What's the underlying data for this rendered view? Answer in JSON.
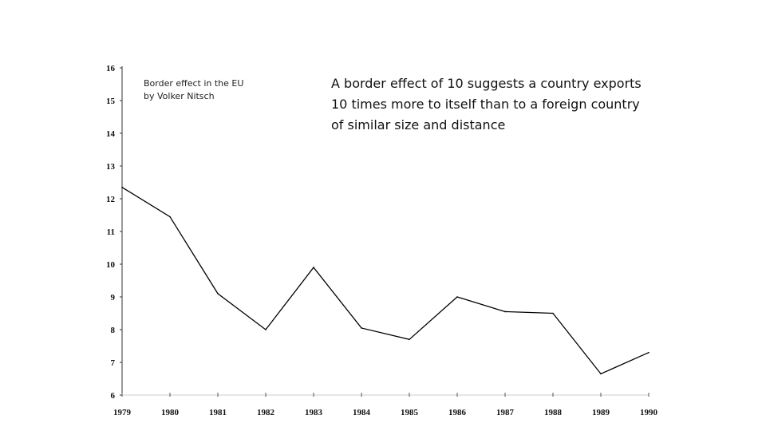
{
  "chart_data": {
    "type": "line",
    "title": "Border effect in the EU",
    "subtitle": "by Volker Nitsch",
    "annotation": "A border effect of 10 suggests a country exports 10 times more to itself than to a foreign country of similar size and distance",
    "x": [
      "1979",
      "1980",
      "1981",
      "1982",
      "1983",
      "1984",
      "1985",
      "1986",
      "1987",
      "1988",
      "1989",
      "1990"
    ],
    "series": [
      {
        "values": [
          12.35,
          11.45,
          9.1,
          8.0,
          9.9,
          8.05,
          7.7,
          9.0,
          8.55,
          8.5,
          6.65,
          7.3
        ]
      }
    ],
    "ylim": [
      6,
      16
    ],
    "yticks": [
      "6",
      "7",
      "8",
      "9",
      "10",
      "11",
      "12",
      "13",
      "14",
      "15",
      "16"
    ],
    "xlabel": "",
    "ylabel": "",
    "grid": false,
    "line_color": "#000000"
  }
}
